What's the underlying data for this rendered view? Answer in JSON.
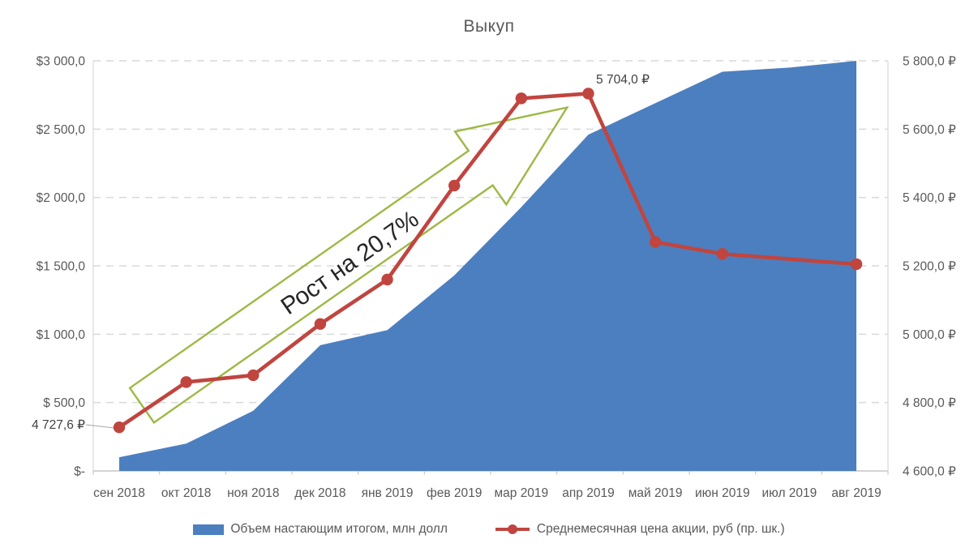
{
  "title": "Выкуп",
  "colors": {
    "area_blue": "#4C7FBF",
    "line_red": "#C0453F",
    "arrow_green": "#9CB944",
    "axis_text": "#595959",
    "gridline": "#D9D9D9",
    "axis_line": "#C6C6C6",
    "leader_line": "#A6A6A6",
    "data_label": "#404040",
    "annotation_text": "#262626"
  },
  "chart_data": {
    "type": "combo-area-line",
    "categories": [
      "сен 2018",
      "окт 2018",
      "ноя 2018",
      "дек 2018",
      "янв 2019",
      "фев 2019",
      "мар 2019",
      "апр 2019",
      "май 2019",
      "июн 2019",
      "июл 2019",
      "авг 2019"
    ],
    "series": [
      {
        "name": "Объем настающим итогом, млн долл",
        "type": "area",
        "axis": "left",
        "values": [
          100,
          200,
          440,
          920,
          1030,
          1430,
          1930,
          2460,
          2690,
          2920,
          2950,
          3000
        ]
      },
      {
        "name": "Среднемесячная цена акции, руб (пр. шк.)",
        "type": "line",
        "axis": "right",
        "values": [
          4727.6,
          4860,
          4880,
          5030,
          5160,
          5435,
          5690,
          5704,
          5270,
          5235,
          5220,
          5205
        ],
        "hidden_marker_indexes": [
          10
        ]
      }
    ],
    "left_axis": {
      "min": 0,
      "max": 3000,
      "step": 500,
      "ticks": [
        "$-",
        "$ 500,0",
        "$1 000,0",
        "$1 500,0",
        "$2 000,0",
        "$2 500,0",
        "$3 000,0"
      ]
    },
    "right_axis": {
      "min": 4600,
      "max": 5800,
      "step": 200,
      "ticks": [
        "4 600,0 ₽",
        "4 800,0 ₽",
        "5 000,0 ₽",
        "5 200,0 ₽",
        "5 400,0 ₽",
        "5 600,0 ₽",
        "5 800,0 ₽"
      ]
    },
    "grid": "horizontal-dashed",
    "legend_position": "bottom",
    "annotations": {
      "growth_label": "Рост на 20,7%",
      "first_point_label": "4 727,6 ₽",
      "peak_point_label": "5 704,0 ₽"
    }
  }
}
